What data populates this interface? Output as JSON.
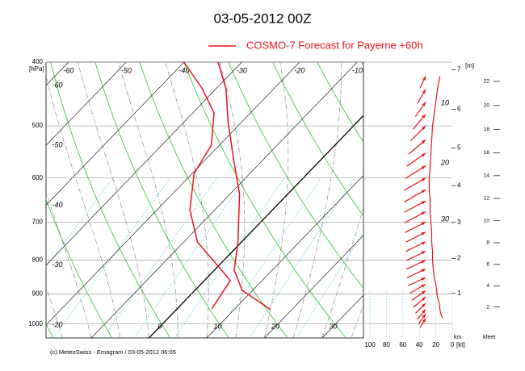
{
  "chart_data": {
    "type": "skewt",
    "title": "03-05-2012  00Z",
    "footer": "(c) MeteoSwiss - Emagram  /  03-05-2012  06:05",
    "ylabel": "[hPa]",
    "log_y": true,
    "ylim": [
      400,
      1050
    ],
    "yticks": [
      400,
      500,
      600,
      700,
      800,
      900,
      1000
    ],
    "xticks": [
      -60,
      -50,
      -40,
      -30,
      -20,
      -10,
      0,
      10,
      20,
      30
    ],
    "grid": true,
    "series": [
      {
        "name": "COSMO-7 Forecast for Payerne   +60h",
        "color": "#e8141b",
        "levels": [
          950,
          889,
          828,
          751,
          634,
          566,
          492,
          439,
          400
        ],
        "values": [
          16.2,
          8.2,
          3.4,
          -0.6,
          -8.4,
          -14.8,
          -22.5,
          -28.3,
          -34.1
        ]
      },
      {
        "color": "#e8141b",
        "levels": [
          948,
          859,
          817,
          751,
          671,
          590,
          535,
          478,
          439,
          400
        ],
        "values": [
          6.0,
          4.5,
          0,
          -7.6,
          -14.3,
          -19.7,
          -21.4,
          -26.3,
          -32.4,
          -40.0
        ]
      }
    ],
    "height": {
      "km_label": "[m]",
      "km_axis_label": "km",
      "km_ticks": [
        1,
        2,
        3,
        4,
        5,
        6,
        7
      ],
      "kfeet_label": "kfeet",
      "kfeet_ticks": [
        2,
        4,
        6,
        8,
        10,
        12,
        14,
        16,
        18,
        20,
        22
      ]
    },
    "wind": {
      "xlabel": "[kt]",
      "xlim": [
        100,
        0
      ],
      "xticks": [
        100,
        80,
        60,
        40,
        20,
        0
      ],
      "color": "#e8141b",
      "annotations": [
        "10",
        "20",
        "30"
      ],
      "levels": [
        420,
        440,
        460,
        480,
        500,
        525,
        550,
        575,
        600,
        625,
        650,
        675,
        700,
        725,
        750,
        775,
        800,
        825,
        850,
        870,
        890,
        910,
        930,
        950,
        965,
        980
      ],
      "speeds": [
        15,
        18,
        20,
        22,
        24,
        25,
        26,
        27,
        28,
        28,
        27,
        27,
        26,
        25,
        25,
        24,
        24,
        23,
        22,
        20,
        19,
        18,
        16,
        15,
        14,
        12
      ],
      "directions": [
        205,
        210,
        215,
        220,
        225,
        230,
        235,
        238,
        240,
        240,
        242,
        242,
        243,
        243,
        244,
        244,
        245,
        245,
        245,
        240,
        235,
        230,
        225,
        220,
        215,
        210
      ]
    }
  }
}
